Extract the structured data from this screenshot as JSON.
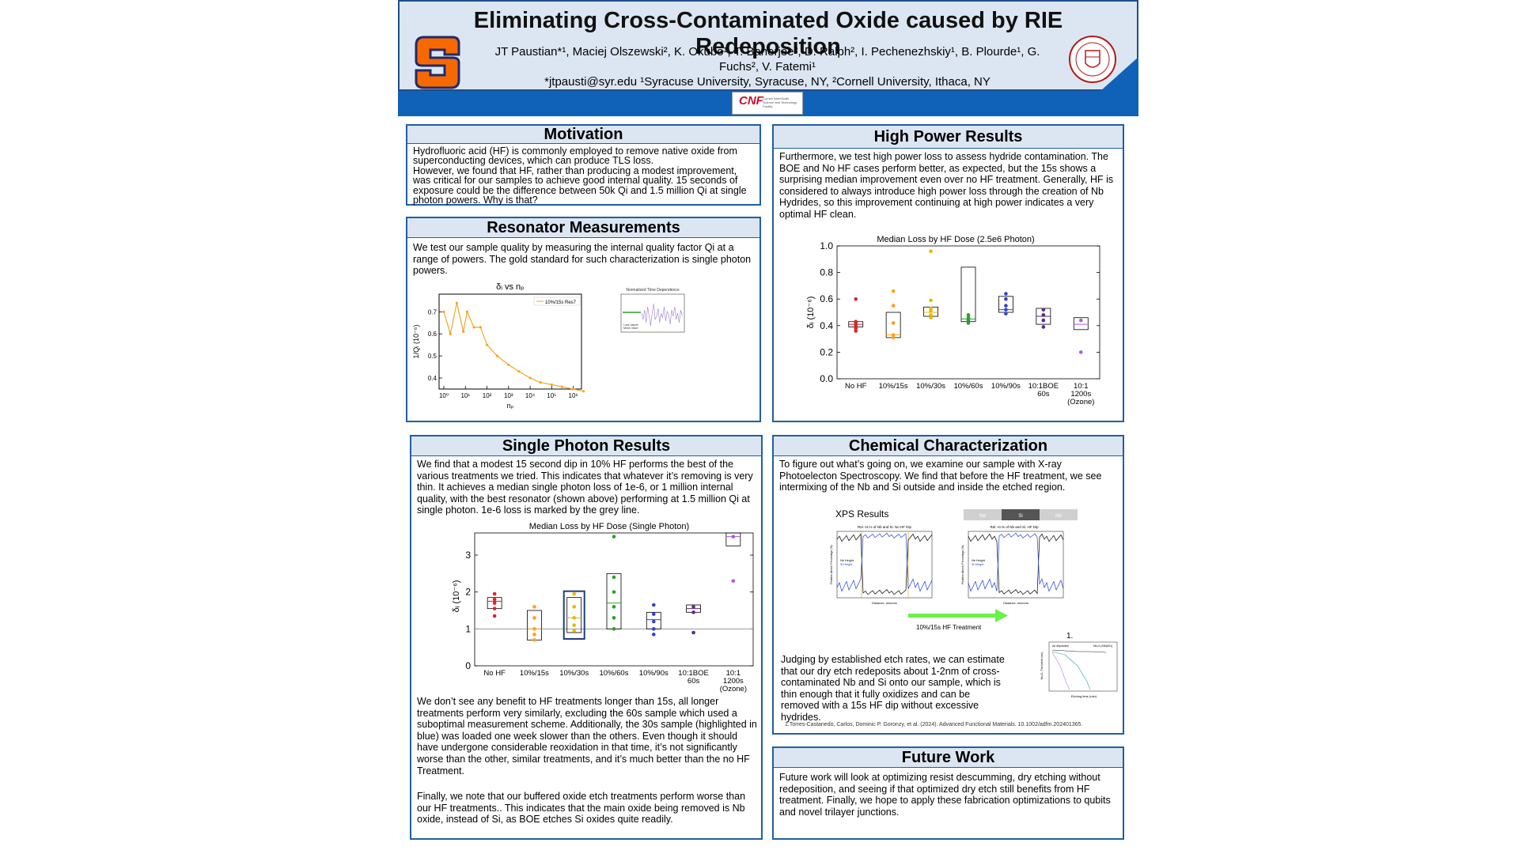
{
  "header": {
    "title": "Eliminating Cross-Contaminated Oxide caused by RIE Redeposition",
    "authors_line1": "JT Paustian*¹, Maciej Olszewski², K. Okubo¹, T. Banerjee², D. Ralph², I. Pechenezhskiy¹, B. Plourde¹, G.",
    "authors_line2": "Fuchs², V. Fatemi¹",
    "contact": "*jtpausti@syr.edu ¹Syracuse University, Syracuse, NY, ²Cornell University, Ithaca, NY",
    "cnf_logo": "CNF",
    "cnf_sub": "Cornell NanoScale Science and Technology Facility"
  },
  "motivation": {
    "heading": "Motivation",
    "p1": "Hydrofluoric acid (HF) is commonly employed to remove native oxide from superconducting devices, which can produce TLS loss.",
    "p2": "However, we found that HF, rather than producing a modest improvement, was critical for our samples to achieve good internal quality. 15 seconds of exposure could be the difference between 50k Qi and 1.5 million Qi at single photon powers. Why is that?"
  },
  "resonator": {
    "heading": "Resonator Measurements",
    "p1": "We test our sample quality by measuring the internal quality factor Qi at a range of powers. The gold standard for such characterization is single photon powers.",
    "chart_title": "δᵢ vs nₚ",
    "ylabel": "1/Qᵢ (10⁻⁶)",
    "xlabel": "nₚ",
    "legend": "10%/15s Res7",
    "yticks": [
      "0.4",
      "0.5",
      "0.6",
      "0.7"
    ],
    "xticks": [
      "10⁰",
      "10¹",
      "10²",
      "10³",
      "10⁴",
      "10⁵",
      "10⁶"
    ],
    "inset_title": "Normalized Time Dependence",
    "inset_legend1": "Loss Values",
    "inset_legend2": "Mean Value"
  },
  "highpower": {
    "heading": "High Power Results",
    "p1": "Furthermore, we test high power loss to assess hydride contamination. The BOE and No HF cases perform better, as expected, but the 15s shows a surprising median improvement even over no HF treatment. Generally, HF is considered to always introduce high power loss through the creation of Nb Hydrides, so this improvement continuing at high power indicates a very optimal HF clean."
  },
  "singlephoton": {
    "heading": "Single Photon Results",
    "p1": "We find that a modest 15 second dip in 10% HF performs the best of the various treatments we tried. This indicates that whatever it’s removing is very thin. It achieves a median single photon loss of 1e-6, or 1 million internal quality, with the best resonator (shown above) performing at 1.5 million Qi at single photon. 1e-6 loss is marked by the grey line.",
    "p2": "We don’t see any benefit to HF treatments longer than 15s, all longer treatments perform very similarly, excluding the 60s sample which used a suboptimal measurement scheme. Additionally, the 30s sample (highlighted in blue) was loaded one week slower than the others. Even though it should have undergone considerable reoxidation in that time, it’s not significantly worse than the other, similar treatments, and it’s much better than the no HF Treatment.",
    "p3": "Finally, we note that our buffered oxide etch treatments perform worse than our HF treatments.. This indicates that the main oxide being removed is Nb oxide, instead of Si, as BOE etches Si oxides quite readily."
  },
  "chemical": {
    "heading": "Chemical Characterization",
    "p1": "To figure out what’s going on, we examine our sample with X-ray Photoelecton Spectroscopy. We find that before the HF treatment, we see intermixing of the Nb and Si outside and inside the etched region.",
    "xps_label": "XPS Results",
    "bar_nb1": "Nb",
    "bar_si": "Si",
    "bar_nb2": "Nb",
    "xps_left_title": "Rel. At.% of Nb and Si: No HF Dip",
    "xps_right_title": "Rel. At.% of Nb and Si: HF Dip",
    "xps_xlabel": "Distance, microns",
    "xps_ylabel": "Relative Atomic Percentage (%)",
    "xps_leg_nb": "Nb Height",
    "xps_leg_si": "Si Height",
    "arrow_label": "10%/15s HF Treatment",
    "p2": "Judging by established etch rates, we can estimate that our dry etch redeposits about 1-2nm of cross-contaminated Nb and Si onto our sample, which is thin enough that it fully oxidizes and can be removed with a 15s HF dip without excessive hydrides.",
    "ref_num": "1.",
    "ref": "1.Torres-Castanedo, Carlos, Dominic P. Goronzy, et al. (2024). Advanced Functional Materials. 10.1002/adfm.202401365.",
    "inset_ylabel": "Nb₂O₅ Thickness (nm)",
    "inset_xlabel": "Etching time (min)",
    "inset_title_left": "As deposited",
    "inset_title_right": "Nb₂O₅/Nb(001)"
  },
  "future": {
    "heading": "Future Work",
    "p1": "Future work will look at optimizing resist descumming, dry etching without redeposition, and seeing if that optimized dry etch still benefits from HF treatment. Finally, we hope to apply these fabrication optimizations to qubits and novel trilayer junctions."
  },
  "chart_data": [
    {
      "type": "line",
      "title": "δᵢ vs nₚ",
      "xlabel": "nₚ",
      "ylabel": "1/Qᵢ (10⁻⁶)",
      "xscale": "log",
      "series": [
        {
          "name": "10%/15s Res7",
          "x": [
            1,
            2,
            4,
            8,
            12,
            25,
            50,
            100,
            300,
            1000,
            3000,
            10000,
            30000,
            100000,
            300000,
            1000000,
            3000000
          ],
          "y": [
            0.7,
            0.6,
            0.74,
            0.61,
            0.7,
            0.63,
            0.63,
            0.55,
            0.5,
            0.46,
            0.43,
            0.4,
            0.38,
            0.37,
            0.36,
            0.35,
            0.34
          ]
        }
      ],
      "ylim": [
        0.35,
        0.78
      ]
    },
    {
      "type": "box",
      "title": "Median Loss by HF Dose (2.5e6 Photon)",
      "ylabel": "δᵢ (10⁻⁶)",
      "yticks": [
        "0.0",
        "0.2",
        "0.4",
        "0.6",
        "0.8",
        "1.0"
      ],
      "ylim": [
        0,
        1.0
      ],
      "categories": [
        "No HF",
        "10%/15s",
        "10%/30s",
        "10%/60s",
        "10%/90s",
        "10:1BOE 60s",
        "10:1 1200s (Ozone)"
      ],
      "colors": [
        "#d62728",
        "#ff9f1c",
        "#e6b800",
        "#2ca02c",
        "#3344cc",
        "#5b2a86",
        "#b05cd6"
      ],
      "boxes": [
        {
          "q1": 0.39,
          "med": 0.41,
          "q3": 0.43,
          "points": [
            0.36,
            0.38,
            0.4,
            0.42,
            0.43,
            0.6
          ]
        },
        {
          "q1": 0.31,
          "med": 0.33,
          "q3": 0.5,
          "points": [
            0.31,
            0.33,
            0.42,
            0.55,
            0.66
          ]
        },
        {
          "q1": 0.47,
          "med": 0.5,
          "q3": 0.54,
          "points": [
            0.46,
            0.48,
            0.51,
            0.53,
            0.59,
            0.96
          ]
        },
        {
          "q1": 0.43,
          "med": 0.45,
          "q3": 0.84,
          "points": [
            0.42,
            0.44,
            0.46,
            0.48
          ]
        },
        {
          "q1": 0.5,
          "med": 0.52,
          "q3": 0.62,
          "points": [
            0.49,
            0.52,
            0.55,
            0.6,
            0.64
          ]
        },
        {
          "q1": 0.41,
          "med": 0.47,
          "q3": 0.53,
          "points": [
            0.39,
            0.44,
            0.48,
            0.52
          ]
        },
        {
          "q1": 0.37,
          "med": 0.41,
          "q3": 0.46,
          "points": [
            0.2,
            0.44
          ]
        }
      ]
    },
    {
      "type": "box",
      "title": "Median Loss by HF Dose (Single Photon)",
      "ylabel": "δᵢ (10⁻⁶)",
      "yticks": [
        "0",
        "1",
        "2",
        "3"
      ],
      "ylim": [
        0,
        3.6
      ],
      "reference_line": 1,
      "categories": [
        "No HF",
        "10%/15s",
        "10%/30s",
        "10%/60s",
        "10%/90s",
        "10:1BOE 60s",
        "10:1 1200s (Ozone)"
      ],
      "colors": [
        "#d62728",
        "#ff9f1c",
        "#e6b800",
        "#2ca02c",
        "#3344cc",
        "#5b2a86",
        "#b05cd6"
      ],
      "boxes": [
        {
          "q1": 1.55,
          "med": 1.75,
          "q3": 1.85,
          "points": [
            1.35,
            1.55,
            1.7,
            1.8,
            1.95
          ]
        },
        {
          "q1": 0.7,
          "med": 1.0,
          "q3": 1.5,
          "points": [
            0.7,
            0.85,
            1.0,
            1.3,
            1.6
          ]
        },
        {
          "q1": 0.9,
          "med": 1.3,
          "q3": 1.85,
          "points": [
            0.95,
            1.1,
            1.3,
            1.6,
            1.95
          ]
        },
        {
          "q1": 1.0,
          "med": 1.7,
          "q3": 2.5,
          "points": [
            1.0,
            1.3,
            1.6,
            2.0,
            2.4,
            3.5
          ]
        },
        {
          "q1": 1.0,
          "med": 1.25,
          "q3": 1.45,
          "points": [
            0.85,
            1.0,
            1.2,
            1.4,
            1.65
          ]
        },
        {
          "q1": 1.45,
          "med": 1.55,
          "q3": 1.65,
          "points": [
            0.9,
            1.45,
            1.6
          ]
        },
        {
          "q1": 3.25,
          "med": 3.5,
          "q3": 3.6,
          "points": [
            2.3,
            3.5
          ]
        }
      ]
    }
  ]
}
